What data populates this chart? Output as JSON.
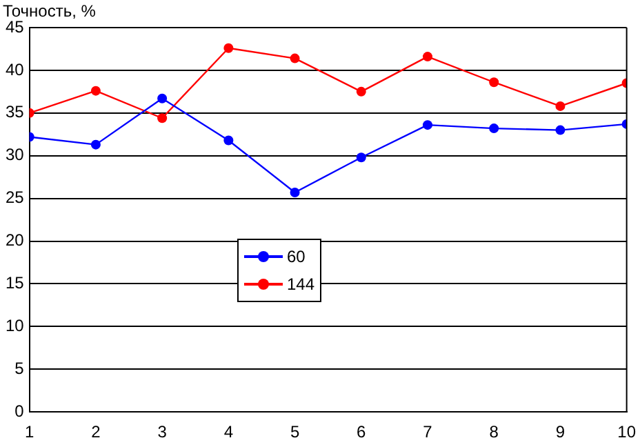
{
  "chart_data": {
    "type": "line",
    "ylabel": "Точность, %",
    "x": [
      1,
      2,
      3,
      4,
      5,
      6,
      7,
      8,
      9,
      10
    ],
    "series": [
      {
        "name": "60",
        "color": "#0000ff",
        "values": [
          32.2,
          31.3,
          36.7,
          31.8,
          25.7,
          29.8,
          33.6,
          33.2,
          33.0,
          33.7
        ]
      },
      {
        "name": "144",
        "color": "#ff0000",
        "values": [
          35.0,
          37.6,
          34.4,
          42.6,
          41.4,
          37.5,
          41.6,
          38.6,
          35.8,
          38.5
        ]
      }
    ],
    "xlim": [
      1,
      10
    ],
    "xticks": [
      1,
      2,
      3,
      4,
      5,
      6,
      7,
      8,
      9,
      10
    ],
    "ylim": [
      0,
      45
    ],
    "yticks": [
      0,
      5,
      10,
      15,
      20,
      25,
      30,
      35,
      40,
      45
    ],
    "grid": "y",
    "legend": "center",
    "marker": "circle",
    "line_style": "solid"
  }
}
